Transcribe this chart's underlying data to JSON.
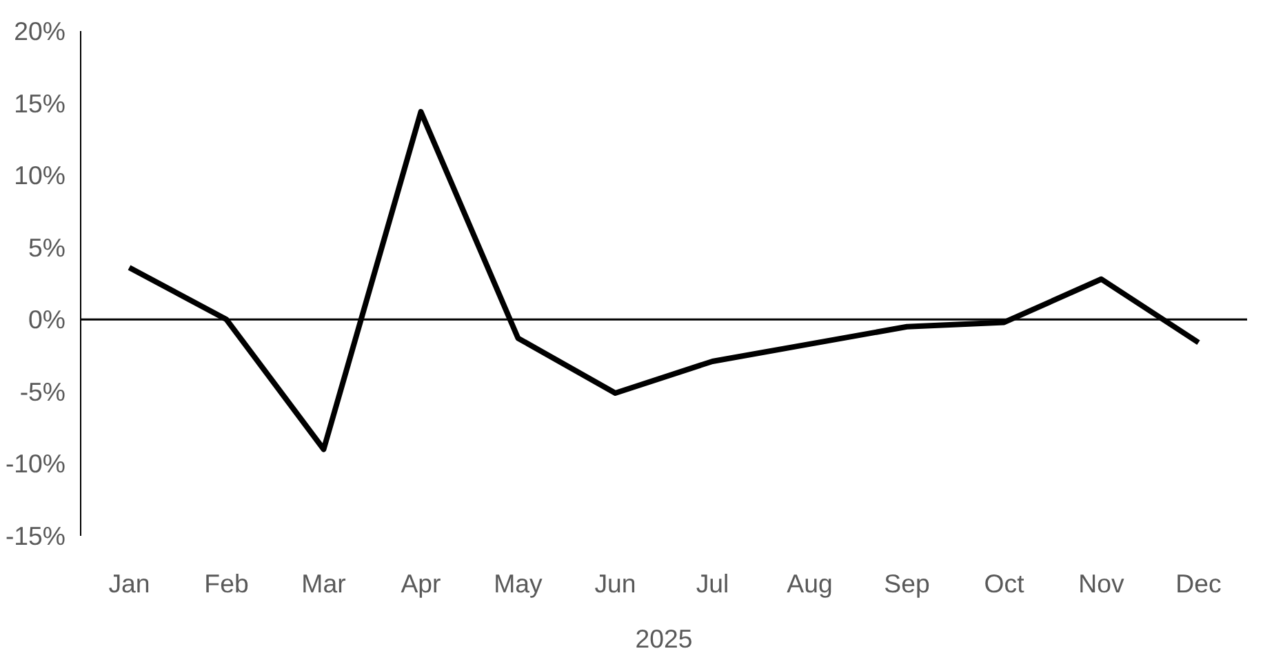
{
  "chart_data": {
    "type": "line",
    "xlabel": "2025",
    "categories": [
      "Jan",
      "Feb",
      "Mar",
      "Apr",
      "May",
      "Jun",
      "Jul",
      "Aug",
      "Sep",
      "Oct",
      "Nov",
      "Dec"
    ],
    "series": [
      {
        "color": "#000000",
        "values": [
          3.6,
          0,
          -9.0,
          14.4,
          -1.3,
          -5.1,
          -2.9,
          -1.7,
          -0.5,
          -0.2,
          2.8,
          -1.6
        ]
      }
    ],
    "ylim": [
      -15,
      20
    ],
    "yticks": [
      {
        "value": 20,
        "label": "20%"
      },
      {
        "value": 15,
        "label": "15%"
      },
      {
        "value": 10,
        "label": "10%"
      },
      {
        "value": 5,
        "label": "5%"
      },
      {
        "value": 0,
        "label": "0%"
      },
      {
        "value": -5,
        "label": "-5%"
      },
      {
        "value": -10,
        "label": "-10%"
      },
      {
        "value": -15,
        "label": "-15%"
      }
    ],
    "ref_lines": [
      {
        "axis": "y",
        "value": 0,
        "color": "#000000"
      }
    ],
    "grid": false,
    "marker": "none",
    "line_style": "solid"
  }
}
